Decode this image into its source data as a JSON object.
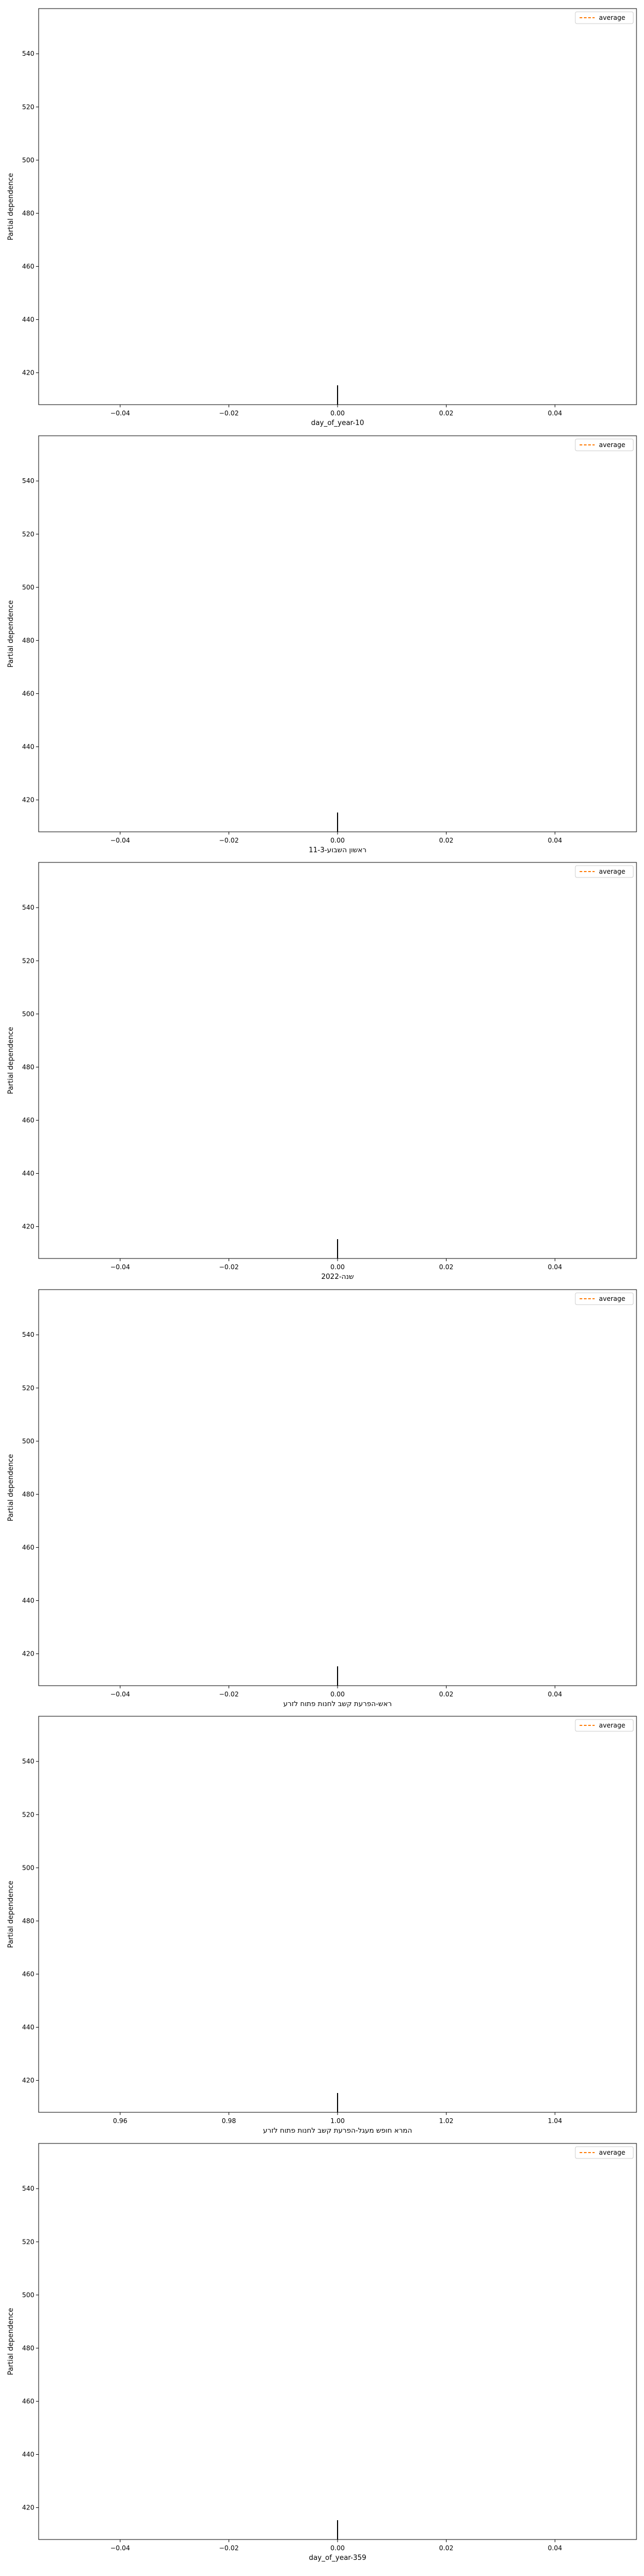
{
  "figure": {
    "ylabel": "Partial dependence",
    "legend_label": "average",
    "colors": {
      "average_line": "#ff7f0e",
      "rug": "#000000",
      "frame": "#000000",
      "legend_border": "#cccccc"
    }
  },
  "chart_data": [
    {
      "type": "line",
      "xlabel": "day_of_year-10",
      "ylabel": "Partial dependence",
      "xlim": [
        -0.055,
        0.055
      ],
      "ylim": [
        408,
        557
      ],
      "xticks": [
        -0.04,
        -0.02,
        0.0,
        0.02,
        0.04
      ],
      "xtick_labels": [
        "−0.04",
        "−0.02",
        "0.00",
        "0.02",
        "0.04"
      ],
      "yticks": [
        420,
        440,
        460,
        480,
        500,
        520,
        540
      ],
      "yticks_labels": [
        "420",
        "440",
        "460",
        "480",
        "500",
        "520",
        "540"
      ],
      "rug_x": [
        0.0
      ],
      "series": [
        {
          "name": "average",
          "style": "dashed",
          "x": [],
          "y": []
        }
      ],
      "legend": "top-right",
      "grid": false
    },
    {
      "type": "line",
      "xlabel": "ראשון השבוע-11-3",
      "ylabel": "Partial dependence",
      "xlim": [
        -0.055,
        0.055
      ],
      "ylim": [
        408,
        557
      ],
      "xticks": [
        -0.04,
        -0.02,
        0.0,
        0.02,
        0.04
      ],
      "xtick_labels": [
        "−0.04",
        "−0.02",
        "0.00",
        "0.02",
        "0.04"
      ],
      "yticks": [
        420,
        440,
        460,
        480,
        500,
        520,
        540
      ],
      "yticks_labels": [
        "420",
        "440",
        "460",
        "480",
        "500",
        "520",
        "540"
      ],
      "rug_x": [
        0.0
      ],
      "series": [
        {
          "name": "average",
          "style": "dashed",
          "x": [],
          "y": []
        }
      ],
      "legend": "top-right",
      "grid": false
    },
    {
      "type": "line",
      "xlabel": "שנה-2022",
      "ylabel": "Partial dependence",
      "xlim": [
        -0.055,
        0.055
      ],
      "ylim": [
        408,
        557
      ],
      "xticks": [
        -0.04,
        -0.02,
        0.0,
        0.02,
        0.04
      ],
      "xtick_labels": [
        "−0.04",
        "−0.02",
        "0.00",
        "0.02",
        "0.04"
      ],
      "yticks": [
        420,
        440,
        460,
        480,
        500,
        520,
        540
      ],
      "yticks_labels": [
        "420",
        "440",
        "460",
        "480",
        "500",
        "520",
        "540"
      ],
      "rug_x": [
        0.0
      ],
      "series": [
        {
          "name": "average",
          "style": "dashed",
          "x": [],
          "y": []
        }
      ],
      "legend": "top-right",
      "grid": false
    },
    {
      "type": "line",
      "xlabel": "ראש-הפרעת קשב לחנות פתוח לזרע",
      "ylabel": "Partial dependence",
      "xlim": [
        -0.055,
        0.055
      ],
      "ylim": [
        408,
        557
      ],
      "xticks": [
        -0.04,
        -0.02,
        0.0,
        0.02,
        0.04
      ],
      "xtick_labels": [
        "−0.04",
        "−0.02",
        "0.00",
        "0.02",
        "0.04"
      ],
      "yticks": [
        420,
        440,
        460,
        480,
        500,
        520,
        540
      ],
      "yticks_labels": [
        "420",
        "440",
        "460",
        "480",
        "500",
        "520",
        "540"
      ],
      "rug_x": [
        0.0
      ],
      "series": [
        {
          "name": "average",
          "style": "dashed",
          "x": [],
          "y": []
        }
      ],
      "legend": "top-right",
      "grid": false
    },
    {
      "type": "line",
      "xlabel": "המרא חופש מעגל-הפרעת קשב לחנות פתוח לזרע",
      "ylabel": "Partial dependence",
      "xlim": [
        0.945,
        1.055
      ],
      "ylim": [
        408,
        557
      ],
      "xticks": [
        0.96,
        0.98,
        1.0,
        1.02,
        1.04
      ],
      "xtick_labels": [
        "0.96",
        "0.98",
        "1.00",
        "1.02",
        "1.04"
      ],
      "yticks": [
        420,
        440,
        460,
        480,
        500,
        520,
        540
      ],
      "yticks_labels": [
        "420",
        "440",
        "460",
        "480",
        "500",
        "520",
        "540"
      ],
      "rug_x": [
        1.0
      ],
      "series": [
        {
          "name": "average",
          "style": "dashed",
          "x": [],
          "y": []
        }
      ],
      "legend": "top-right",
      "grid": false
    },
    {
      "type": "line",
      "xlabel": "day_of_year-359",
      "ylabel": "Partial dependence",
      "xlim": [
        -0.055,
        0.055
      ],
      "ylim": [
        408,
        557
      ],
      "xticks": [
        -0.04,
        -0.02,
        0.0,
        0.02,
        0.04
      ],
      "xtick_labels": [
        "−0.04",
        "−0.02",
        "0.00",
        "0.02",
        "0.04"
      ],
      "yticks": [
        420,
        440,
        460,
        480,
        500,
        520,
        540
      ],
      "yticks_labels": [
        "420",
        "440",
        "460",
        "480",
        "500",
        "520",
        "540"
      ],
      "rug_x": [
        0.0
      ],
      "series": [
        {
          "name": "average",
          "style": "dashed",
          "x": [],
          "y": []
        }
      ],
      "legend": "top-right",
      "grid": false
    }
  ]
}
